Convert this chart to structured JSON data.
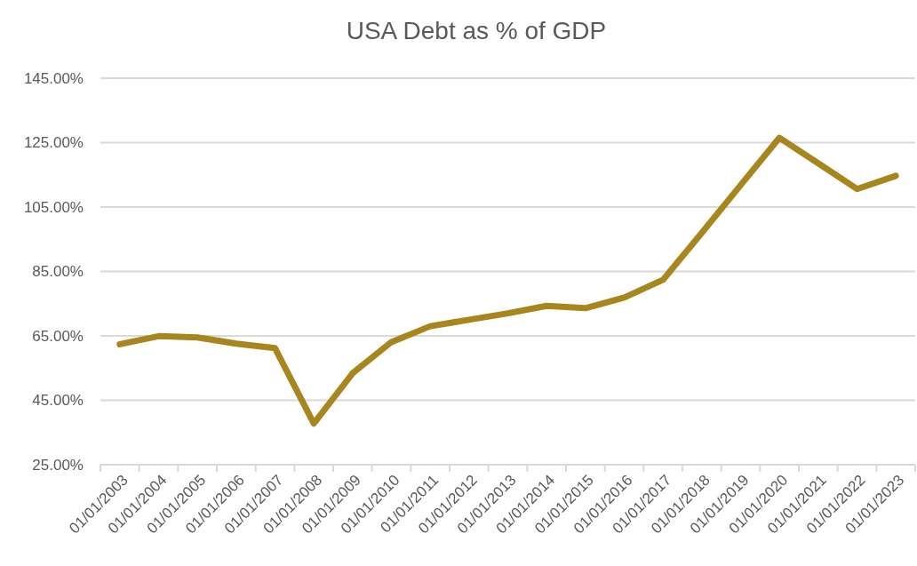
{
  "chart_data": {
    "type": "line",
    "title": "USA Debt as % of GDP",
    "categories": [
      "01/01/2003",
      "01/01/2004",
      "01/01/2005",
      "01/01/2006",
      "01/01/2007",
      "01/01/2008",
      "01/01/2009",
      "01/01/2010",
      "01/01/2011",
      "01/01/2012",
      "01/01/2013",
      "01/01/2014",
      "01/01/2015",
      "01/01/2016",
      "01/01/2017",
      "01/01/2018",
      "01/01/2019",
      "01/01/2020",
      "01/01/2021",
      "01/01/2022",
      "01/01/2023"
    ],
    "series": [
      {
        "color": "#a8861e",
        "values": [
          62.4,
          64.9,
          64.5,
          62.6,
          61.2,
          37.8,
          53.4,
          63.1,
          68.0,
          70.0,
          72.0,
          74.3,
          73.6,
          76.9,
          82.4,
          97.0,
          111.8,
          126.5,
          118.6,
          110.6,
          114.7
        ]
      }
    ],
    "ylim": [
      25,
      145
    ],
    "yticks": [
      {
        "value": 25,
        "label": "25.00%"
      },
      {
        "value": 45,
        "label": "45.00%"
      },
      {
        "value": 65,
        "label": "65.00%"
      },
      {
        "value": 85,
        "label": "85.00%"
      },
      {
        "value": 105,
        "label": "105.00%"
      },
      {
        "value": 125,
        "label": "125.00%"
      },
      {
        "value": 145,
        "label": "145.00%"
      }
    ],
    "grid": "y",
    "marker": "none",
    "line_style": "solid"
  }
}
